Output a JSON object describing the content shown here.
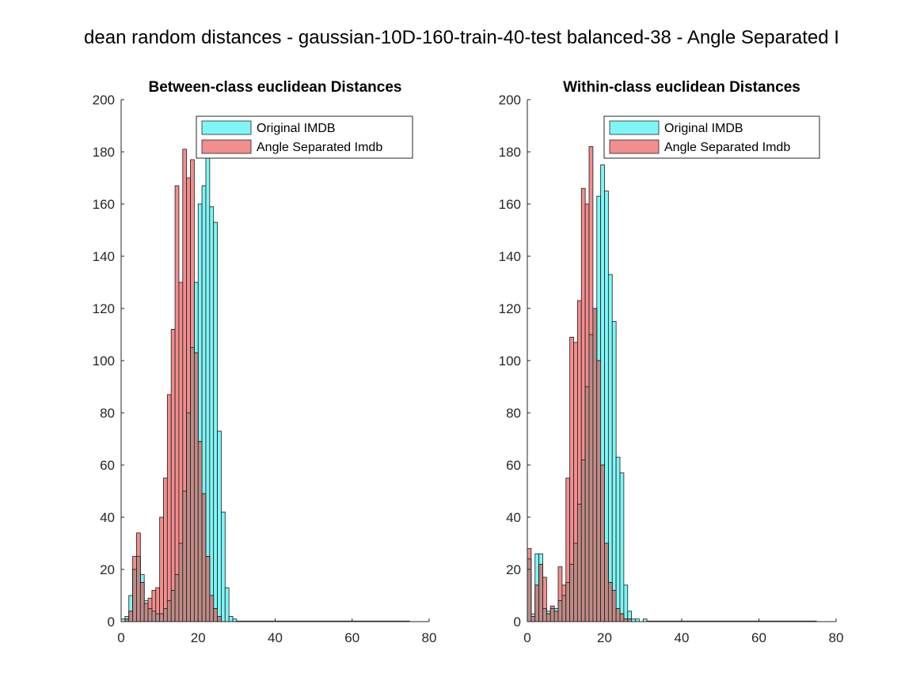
{
  "figure": {
    "suptitle": "dean random distances - gaussian-10D-160-train-40-test balanced-38 - Angle Separated I"
  },
  "colors": {
    "original": "#7ff5f5",
    "angle": "#f28e8e",
    "overlap": "#bf8a86",
    "edge": "#1a1a1a"
  },
  "chart_data": [
    {
      "type": "bar",
      "title": "Between-class euclidean Distances",
      "xlim": [
        0,
        80
      ],
      "ylim": [
        0,
        200
      ],
      "xticks": [
        0,
        20,
        40,
        60,
        80
      ],
      "yticks": [
        0,
        20,
        40,
        60,
        80,
        100,
        120,
        140,
        160,
        180,
        200
      ],
      "legend_position": "top-right",
      "bin_width": 1,
      "bin_start": 0,
      "series": [
        {
          "name": "Original IMDB",
          "values": [
            1,
            2,
            10,
            20,
            25,
            18,
            8,
            5,
            4,
            3,
            3,
            5,
            8,
            12,
            18,
            30,
            50,
            80,
            105,
            130,
            160,
            167,
            180,
            159,
            153,
            73,
            42,
            13,
            2,
            1
          ]
        },
        {
          "name": "Angle Separated Imdb",
          "values": [
            0,
            1,
            4,
            25,
            34,
            15,
            7,
            9,
            12,
            13,
            40,
            55,
            87,
            112,
            167,
            130,
            181,
            170,
            177,
            103,
            69,
            49,
            25,
            10,
            5,
            2,
            0,
            0,
            0,
            0
          ]
        }
      ]
    },
    {
      "type": "bar",
      "title": "Within-class euclidean Distances",
      "xlim": [
        0,
        80
      ],
      "ylim": [
        0,
        200
      ],
      "xticks": [
        0,
        20,
        40,
        60,
        80
      ],
      "yticks": [
        0,
        20,
        40,
        60,
        80,
        100,
        120,
        140,
        160,
        180,
        200
      ],
      "legend_position": "top-right",
      "bin_width": 1,
      "bin_start": 0,
      "series": [
        {
          "name": "Original IMDB",
          "values": [
            24,
            3,
            26,
            26,
            5,
            4,
            5,
            5,
            8,
            10,
            15,
            22,
            30,
            45,
            62,
            90,
            110,
            120,
            163,
            175,
            165,
            133,
            115,
            63,
            57,
            14,
            4,
            1,
            1,
            0,
            1
          ]
        },
        {
          "name": "Angle Separated Imdb",
          "values": [
            28,
            2,
            14,
            22,
            17,
            3,
            6,
            4,
            21,
            14,
            55,
            109,
            107,
            123,
            166,
            160,
            182,
            120,
            100,
            60,
            30,
            15,
            12,
            5,
            3,
            1,
            1,
            0,
            0,
            0,
            0
          ]
        }
      ]
    }
  ]
}
